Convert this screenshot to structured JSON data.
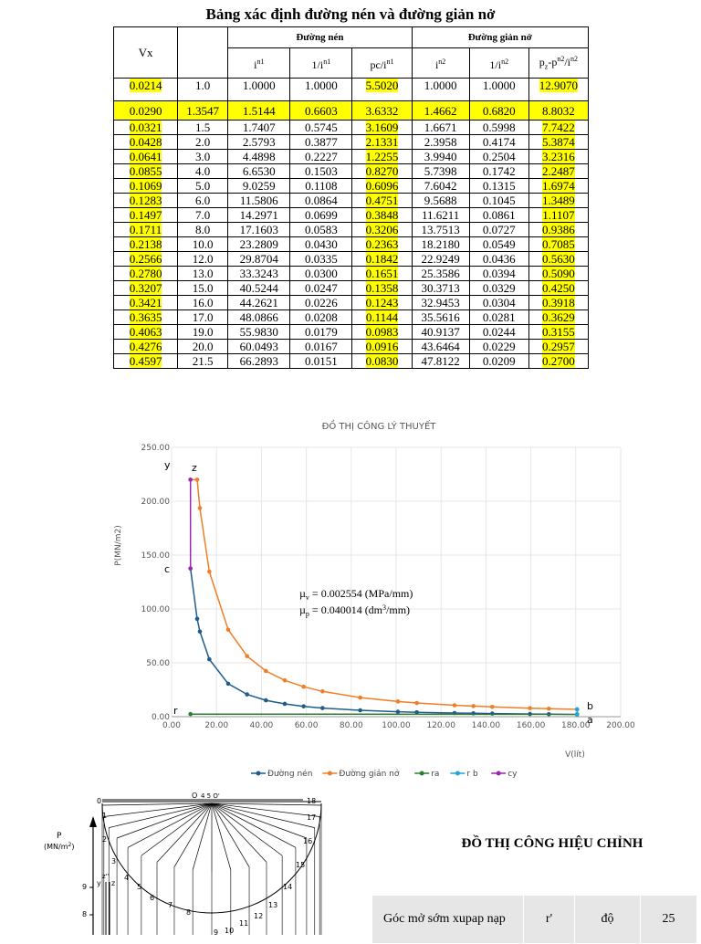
{
  "title": "Bảng xác định đường nén và đường giản nở",
  "table": {
    "vx_label": "Vx",
    "group_compression": "Đường nén",
    "group_expansion": "Đường giản nở",
    "col_compression": [
      "i",
      "1/i",
      "pc/i"
    ],
    "col_compression_sup": [
      "n1",
      "n1",
      "n1"
    ],
    "col_expansion": [
      "i",
      "1/i",
      "p"
    ],
    "col_expansion_sup": [
      "n2",
      "n2",
      ""
    ],
    "col_expansion_extra": "z",
    "col_expansion_tail": "-p",
    "col_expansion_tail_sup": "n2",
    "col_expansion_tail2": "/i",
    "col_expansion_tail2_sup": "n2",
    "rows": [
      [
        "0.0214",
        "1.0",
        "1.0000",
        "1.0000",
        "5.5020",
        "1.0000",
        "1.0000",
        "12.9070"
      ],
      [
        "0.0290",
        "1.3547",
        "1.5144",
        "0.6603",
        "3.6332",
        "1.4662",
        "0.6820",
        "8.8032"
      ],
      [
        "0.0321",
        "1.5",
        "1.7407",
        "0.5745",
        "3.1609",
        "1.6671",
        "0.5998",
        "7.7422"
      ],
      [
        "0.0428",
        "2.0",
        "2.5793",
        "0.3877",
        "2.1331",
        "2.3958",
        "0.4174",
        "5.3874"
      ],
      [
        "0.0641",
        "3.0",
        "4.4898",
        "0.2227",
        "1.2255",
        "3.9940",
        "0.2504",
        "3.2316"
      ],
      [
        "0.0855",
        "4.0",
        "6.6530",
        "0.1503",
        "0.8270",
        "5.7398",
        "0.1742",
        "2.2487"
      ],
      [
        "0.1069",
        "5.0",
        "9.0259",
        "0.1108",
        "0.6096",
        "7.6042",
        "0.1315",
        "1.6974"
      ],
      [
        "0.1283",
        "6.0",
        "11.5806",
        "0.0864",
        "0.4751",
        "9.5688",
        "0.1045",
        "1.3489"
      ],
      [
        "0.1497",
        "7.0",
        "14.2971",
        "0.0699",
        "0.3848",
        "11.6211",
        "0.0861",
        "1.1107"
      ],
      [
        "0.1711",
        "8.0",
        "17.1603",
        "0.0583",
        "0.3206",
        "13.7513",
        "0.0727",
        "0.9386"
      ],
      [
        "0.2138",
        "10.0",
        "23.2809",
        "0.0430",
        "0.2363",
        "18.2180",
        "0.0549",
        "0.7085"
      ],
      [
        "0.2566",
        "12.0",
        "29.8704",
        "0.0335",
        "0.1842",
        "22.9249",
        "0.0436",
        "0.5630"
      ],
      [
        "0.2780",
        "13.0",
        "33.3243",
        "0.0300",
        "0.1651",
        "25.3586",
        "0.0394",
        "0.5090"
      ],
      [
        "0.3207",
        "15.0",
        "40.5244",
        "0.0247",
        "0.1358",
        "30.3713",
        "0.0329",
        "0.4250"
      ],
      [
        "0.3421",
        "16.0",
        "44.2621",
        "0.0226",
        "0.1243",
        "32.9453",
        "0.0304",
        "0.3918"
      ],
      [
        "0.3635",
        "17.0",
        "48.0866",
        "0.0208",
        "0.1144",
        "35.5616",
        "0.0281",
        "0.3629"
      ],
      [
        "0.4063",
        "19.0",
        "55.9830",
        "0.0179",
        "0.0983",
        "40.9137",
        "0.0244",
        "0.3155"
      ],
      [
        "0.4276",
        "20.0",
        "60.0493",
        "0.0167",
        "0.0916",
        "43.6464",
        "0.0229",
        "0.2957"
      ],
      [
        "0.4597",
        "21.5",
        "66.2893",
        "0.0151",
        "0.0830",
        "47.8122",
        "0.0209",
        "0.2700"
      ]
    ],
    "highlight_color": "#ffff00"
  },
  "chart_data": {
    "type": "line",
    "title": "ĐỒ THỊ CÔNG LÝ THUYẾT",
    "xlabel": "V(lít)",
    "ylabel": "P(MN/m2)",
    "xlim": [
      0,
      200
    ],
    "ylim": [
      0,
      250
    ],
    "x_ticks": [
      "0.00",
      "20.00",
      "40.00",
      "60.00",
      "80.00",
      "100.00",
      "120.00",
      "140.00",
      "160.00",
      "180.00",
      "200.00"
    ],
    "y_ticks": [
      "0.00",
      "50.00",
      "100.00",
      "150.00",
      "200.00",
      "250.00"
    ],
    "grid": true,
    "legend_position": "bottom",
    "series": [
      {
        "name": "Đường nén",
        "color": "#1f5c8b",
        "points": [
          [
            8.4,
            137.6
          ],
          [
            11.4,
            90.8
          ],
          [
            12.6,
            79.0
          ],
          [
            16.8,
            53.3
          ],
          [
            25.2,
            30.6
          ],
          [
            33.6,
            20.7
          ],
          [
            42.0,
            15.2
          ],
          [
            50.4,
            11.9
          ],
          [
            58.8,
            9.6
          ],
          [
            67.2,
            8.0
          ],
          [
            84.0,
            5.9
          ],
          [
            100.8,
            4.6
          ],
          [
            109.2,
            4.1
          ],
          [
            126.0,
            3.4
          ],
          [
            134.4,
            3.1
          ],
          [
            142.8,
            2.9
          ],
          [
            159.6,
            2.5
          ],
          [
            168.0,
            2.3
          ],
          [
            180.6,
            2.1
          ]
        ]
      },
      {
        "name": "Đường giản nở",
        "color": "#f07e26",
        "points": [
          [
            8.4,
            220.0
          ],
          [
            11.4,
            220.0
          ],
          [
            12.6,
            193.6
          ],
          [
            16.8,
            134.7
          ],
          [
            25.2,
            80.8
          ],
          [
            33.6,
            56.2
          ],
          [
            42.0,
            42.4
          ],
          [
            50.4,
            33.7
          ],
          [
            58.8,
            27.8
          ],
          [
            67.2,
            23.5
          ],
          [
            84.0,
            17.7
          ],
          [
            100.8,
            14.1
          ],
          [
            109.2,
            12.7
          ],
          [
            126.0,
            10.6
          ],
          [
            134.4,
            9.8
          ],
          [
            142.8,
            9.1
          ],
          [
            159.6,
            7.9
          ],
          [
            168.0,
            7.4
          ],
          [
            180.6,
            6.8
          ]
        ]
      },
      {
        "name": "ra",
        "color": "#2e7d32",
        "points": [
          [
            8.4,
            2.4
          ],
          [
            180.6,
            2.2
          ]
        ]
      },
      {
        "name": "r b",
        "color": "#1ea7d8",
        "points": [
          [
            180.6,
            2.2
          ],
          [
            180.6,
            6.8
          ]
        ]
      },
      {
        "name": "cy",
        "color": "#9c27b0",
        "points": [
          [
            8.4,
            137.6
          ],
          [
            8.4,
            220.0
          ]
        ]
      }
    ],
    "annotations": {
      "mu_v": "= 0.002554 (MPa/mm)",
      "mu_p": "= 0.040014 (dm",
      "mu_p_tail": "/mm)",
      "mu_v_sub": "v",
      "mu_p_sub": "p",
      "mu_sym": "µ",
      "cube": "3",
      "point_labels": {
        "y": "y",
        "z": "z",
        "c": "c",
        "r": "r",
        "b": "b",
        "a": "a"
      }
    }
  },
  "diagram": {
    "top_labels": [
      "0",
      "O",
      "4 5 O'",
      "18"
    ],
    "right_numbers": [
      "17",
      "16",
      "15",
      "14",
      "13",
      "12",
      "11",
      "10",
      "9"
    ],
    "left_numbers": [
      "1",
      "2",
      "3",
      "4",
      "5",
      "6",
      "7",
      "8"
    ],
    "p_label": "P",
    "p_unit": "(MN/m",
    "p_unit_sup": "2",
    "p_unit_tail": ")",
    "axis_ticks": [
      "9",
      "8"
    ],
    "y_label": "y",
    "z_label": "z",
    "zp_label": "z''"
  },
  "corrected_title": "ĐỒ THỊ CÔNG HIỆU CHỈNH",
  "params": {
    "rows": [
      {
        "label": "Góc mở sớm xupap nạp",
        "symbol": "r'",
        "unit": "độ",
        "value": "25"
      }
    ]
  }
}
